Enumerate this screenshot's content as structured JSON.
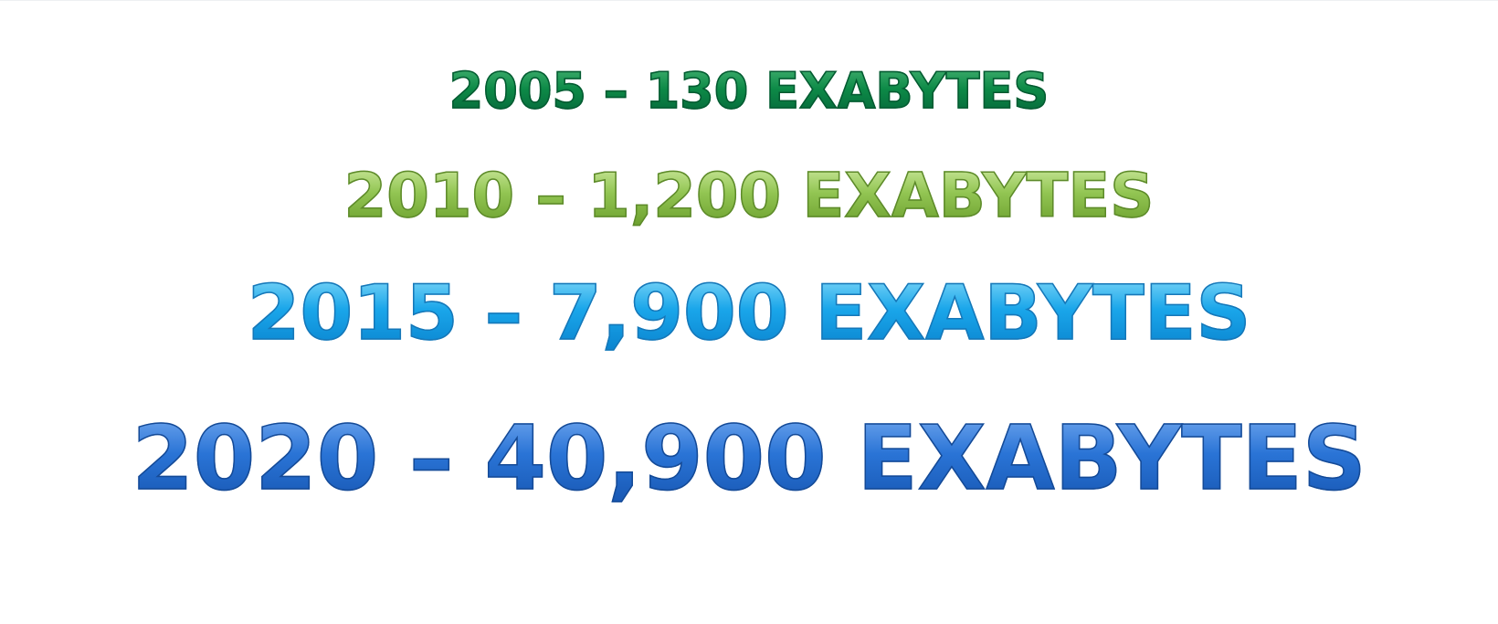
{
  "slide": {
    "lines": [
      {
        "text": "2005 – 130 EXABYTES",
        "color": "#0d8a47"
      },
      {
        "text": "2010 – 1,200 EXABYTES",
        "color": "#92c552"
      },
      {
        "text": "2015 – 7,900 EXABYTES",
        "color": "#1aa6ea"
      },
      {
        "text": "2020 – 40,900 EXABYTES",
        "color": "#2a74d6"
      }
    ]
  }
}
